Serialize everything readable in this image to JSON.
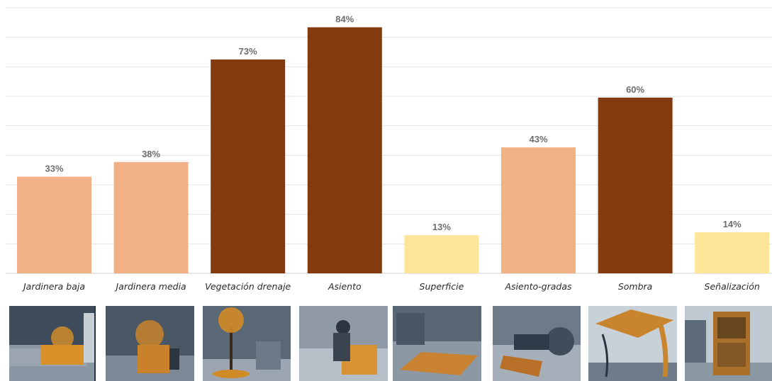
{
  "chart_data": {
    "type": "bar",
    "categories": [
      "Jardinera baja",
      "Jardinera media",
      "Vegetación drenaje",
      "Asiento",
      "Superficie",
      "Asiento-gradas",
      "Sombra",
      "Señalización"
    ],
    "values": [
      33,
      38,
      73,
      84,
      13,
      43,
      60,
      14
    ],
    "value_labels": [
      "33%",
      "38%",
      "73%",
      "84%",
      "13%",
      "43%",
      "60%",
      "14%"
    ],
    "bar_colors": [
      "#f2b086",
      "#f2b086",
      "#833a0e",
      "#833a0e",
      "#fde598",
      "#f2b086",
      "#833a0e",
      "#fde598"
    ],
    "ylim": [
      0,
      90
    ],
    "grid": true,
    "title": "",
    "xlabel": "",
    "ylabel": ""
  },
  "photos": [
    {
      "icon": "planter-low-photo",
      "accent": "#d9912a"
    },
    {
      "icon": "planter-medium-photo",
      "accent": "#c9822a"
    },
    {
      "icon": "tree-drainage-photo",
      "accent": "#d08a26"
    },
    {
      "icon": "seat-photo",
      "accent": "#d89434"
    },
    {
      "icon": "surface-photo",
      "accent": "#c88232"
    },
    {
      "icon": "bench-steps-photo",
      "accent": "#b87028"
    },
    {
      "icon": "shade-pergola-photo",
      "accent": "#c9852e"
    },
    {
      "icon": "signage-totem-photo",
      "accent": "#a8702a"
    }
  ]
}
